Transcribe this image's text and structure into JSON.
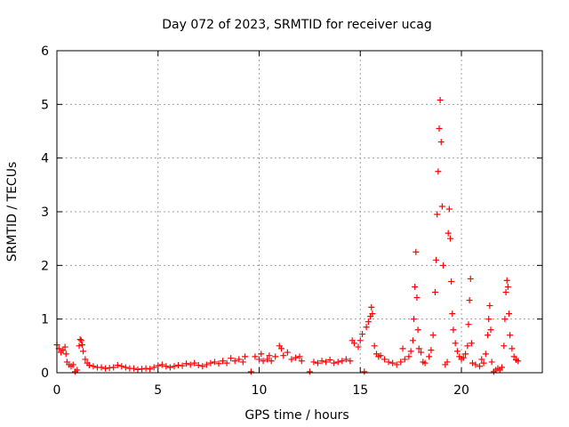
{
  "chart_data": {
    "type": "scatter",
    "title": "Day 072 of 2023, SRMTID for receiver ucag",
    "xlabel": "GPS time / hours",
    "ylabel": "SRMTID / TECUs",
    "xlim": [
      0,
      24
    ],
    "ylim": [
      0,
      6
    ],
    "xticks": [
      0,
      5,
      10,
      15,
      20
    ],
    "yticks": [
      0,
      1,
      2,
      3,
      4,
      5,
      6
    ],
    "grid": true,
    "marker": "+",
    "series": [
      {
        "name": "SRMTID",
        "color": "#ff0000",
        "points": [
          [
            0.0,
            0.52
          ],
          [
            0.1,
            0.45
          ],
          [
            0.2,
            0.38
          ],
          [
            0.3,
            0.42
          ],
          [
            0.4,
            0.48
          ],
          [
            0.45,
            0.35
          ],
          [
            0.5,
            0.2
          ],
          [
            0.6,
            0.15
          ],
          [
            0.7,
            0.12
          ],
          [
            0.8,
            0.15
          ],
          [
            0.9,
            0.02
          ],
          [
            1.0,
            0.05
          ],
          [
            1.1,
            0.5
          ],
          [
            1.15,
            0.62
          ],
          [
            1.2,
            0.6
          ],
          [
            1.25,
            0.52
          ],
          [
            1.3,
            0.4
          ],
          [
            1.4,
            0.25
          ],
          [
            1.5,
            0.18
          ],
          [
            1.6,
            0.14
          ],
          [
            1.8,
            0.12
          ],
          [
            2.0,
            0.1
          ],
          [
            2.2,
            0.1
          ],
          [
            2.4,
            0.08
          ],
          [
            2.6,
            0.09
          ],
          [
            2.8,
            0.1
          ],
          [
            3.0,
            0.14
          ],
          [
            3.2,
            0.12
          ],
          [
            3.4,
            0.1
          ],
          [
            3.6,
            0.08
          ],
          [
            3.8,
            0.08
          ],
          [
            4.0,
            0.06
          ],
          [
            4.2,
            0.07
          ],
          [
            4.4,
            0.08
          ],
          [
            4.6,
            0.07
          ],
          [
            4.8,
            0.1
          ],
          [
            5.0,
            0.13
          ],
          [
            5.2,
            0.15
          ],
          [
            5.4,
            0.12
          ],
          [
            5.6,
            0.1
          ],
          [
            5.8,
            0.12
          ],
          [
            6.0,
            0.14
          ],
          [
            6.2,
            0.13
          ],
          [
            6.4,
            0.17
          ],
          [
            6.6,
            0.15
          ],
          [
            6.8,
            0.18
          ],
          [
            7.0,
            0.14
          ],
          [
            7.2,
            0.12
          ],
          [
            7.4,
            0.15
          ],
          [
            7.6,
            0.18
          ],
          [
            7.8,
            0.2
          ],
          [
            8.0,
            0.17
          ],
          [
            8.2,
            0.22
          ],
          [
            8.4,
            0.18
          ],
          [
            8.6,
            0.27
          ],
          [
            8.8,
            0.22
          ],
          [
            9.0,
            0.25
          ],
          [
            9.2,
            0.2
          ],
          [
            9.3,
            0.3
          ],
          [
            9.6,
            0.02
          ],
          [
            9.8,
            0.3
          ],
          [
            10.0,
            0.25
          ],
          [
            10.1,
            0.35
          ],
          [
            10.2,
            0.22
          ],
          [
            10.4,
            0.25
          ],
          [
            10.5,
            0.32
          ],
          [
            10.6,
            0.22
          ],
          [
            10.8,
            0.3
          ],
          [
            11.0,
            0.5
          ],
          [
            11.1,
            0.45
          ],
          [
            11.2,
            0.32
          ],
          [
            11.4,
            0.38
          ],
          [
            11.6,
            0.25
          ],
          [
            11.8,
            0.28
          ],
          [
            12.0,
            0.3
          ],
          [
            12.1,
            0.22
          ],
          [
            12.5,
            0.02
          ],
          [
            12.7,
            0.2
          ],
          [
            12.9,
            0.18
          ],
          [
            13.1,
            0.22
          ],
          [
            13.3,
            0.2
          ],
          [
            13.5,
            0.24
          ],
          [
            13.7,
            0.18
          ],
          [
            13.9,
            0.2
          ],
          [
            14.1,
            0.22
          ],
          [
            14.3,
            0.25
          ],
          [
            14.5,
            0.22
          ],
          [
            14.6,
            0.6
          ],
          [
            14.7,
            0.55
          ],
          [
            14.9,
            0.48
          ],
          [
            15.0,
            0.6
          ],
          [
            15.1,
            0.72
          ],
          [
            15.2,
            0.02
          ],
          [
            15.3,
            0.85
          ],
          [
            15.4,
            0.95
          ],
          [
            15.5,
            1.05
          ],
          [
            15.55,
            1.22
          ],
          [
            15.6,
            1.1
          ],
          [
            15.7,
            0.5
          ],
          [
            15.8,
            0.35
          ],
          [
            15.9,
            0.3
          ],
          [
            16.0,
            0.32
          ],
          [
            16.2,
            0.25
          ],
          [
            16.4,
            0.2
          ],
          [
            16.6,
            0.18
          ],
          [
            16.8,
            0.15
          ],
          [
            17.0,
            0.2
          ],
          [
            17.1,
            0.45
          ],
          [
            17.2,
            0.25
          ],
          [
            17.4,
            0.3
          ],
          [
            17.5,
            0.4
          ],
          [
            17.6,
            0.6
          ],
          [
            17.65,
            1.0
          ],
          [
            17.7,
            1.6
          ],
          [
            17.75,
            2.25
          ],
          [
            17.8,
            1.4
          ],
          [
            17.85,
            0.8
          ],
          [
            17.9,
            0.45
          ],
          [
            18.0,
            0.38
          ],
          [
            18.1,
            0.2
          ],
          [
            18.2,
            0.18
          ],
          [
            18.4,
            0.3
          ],
          [
            18.5,
            0.42
          ],
          [
            18.6,
            0.7
          ],
          [
            18.7,
            1.5
          ],
          [
            18.75,
            2.1
          ],
          [
            18.8,
            2.95
          ],
          [
            18.85,
            3.75
          ],
          [
            18.9,
            4.55
          ],
          [
            18.95,
            5.08
          ],
          [
            19.0,
            4.3
          ],
          [
            19.05,
            3.1
          ],
          [
            19.1,
            2.0
          ],
          [
            19.2,
            0.15
          ],
          [
            19.3,
            0.2
          ],
          [
            19.35,
            2.6
          ],
          [
            19.4,
            3.05
          ],
          [
            19.45,
            2.5
          ],
          [
            19.5,
            1.7
          ],
          [
            19.55,
            1.1
          ],
          [
            19.6,
            0.8
          ],
          [
            19.7,
            0.55
          ],
          [
            19.8,
            0.4
          ],
          [
            19.9,
            0.3
          ],
          [
            20.0,
            0.25
          ],
          [
            20.1,
            0.28
          ],
          [
            20.2,
            0.35
          ],
          [
            20.3,
            0.5
          ],
          [
            20.35,
            0.9
          ],
          [
            20.4,
            1.35
          ],
          [
            20.45,
            1.75
          ],
          [
            20.5,
            0.55
          ],
          [
            20.55,
            0.18
          ],
          [
            20.7,
            0.15
          ],
          [
            20.9,
            0.12
          ],
          [
            21.0,
            0.25
          ],
          [
            21.1,
            0.18
          ],
          [
            21.2,
            0.35
          ],
          [
            21.3,
            0.7
          ],
          [
            21.35,
            1.0
          ],
          [
            21.4,
            1.25
          ],
          [
            21.45,
            0.8
          ],
          [
            21.5,
            0.2
          ],
          [
            21.6,
            0.02
          ],
          [
            21.7,
            0.05
          ],
          [
            21.8,
            0.08
          ],
          [
            21.9,
            0.05
          ],
          [
            22.0,
            0.1
          ],
          [
            22.1,
            0.5
          ],
          [
            22.15,
            1.0
          ],
          [
            22.2,
            1.5
          ],
          [
            22.25,
            1.72
          ],
          [
            22.3,
            1.6
          ],
          [
            22.35,
            1.1
          ],
          [
            22.4,
            0.7
          ],
          [
            22.5,
            0.45
          ],
          [
            22.6,
            0.3
          ],
          [
            22.7,
            0.24
          ],
          [
            22.8,
            0.22
          ]
        ]
      }
    ]
  }
}
